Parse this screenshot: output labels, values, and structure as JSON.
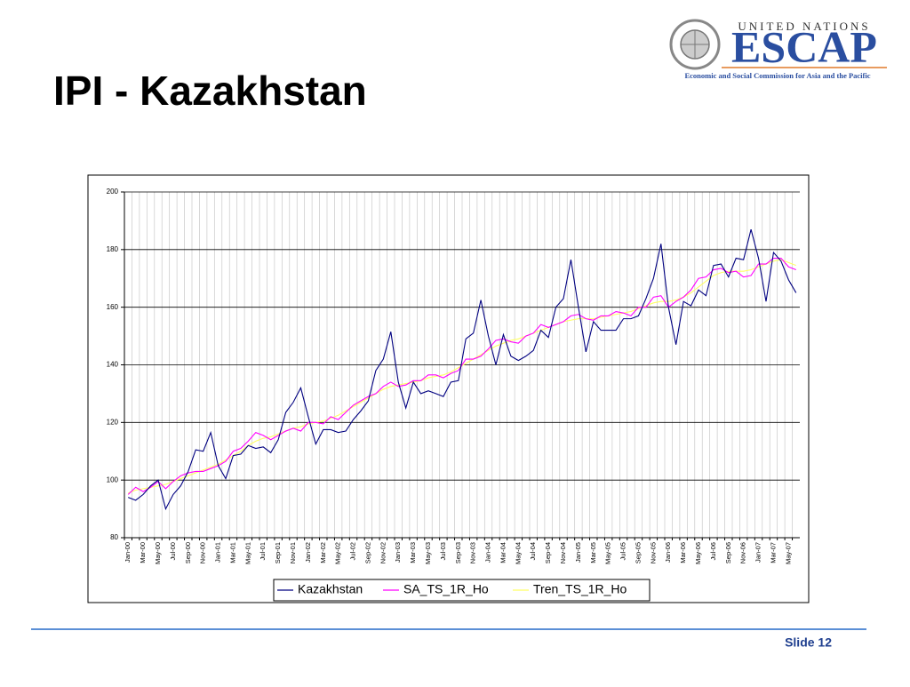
{
  "slide": {
    "title": "IPI - Kazakhstan",
    "logo_top": "UNITED NATIONS",
    "logo_name": "ESCAP",
    "logo_sub": "Economic and Social Commission for Asia and the Pacific",
    "footer": "Slide 12"
  },
  "chart_data": {
    "type": "line",
    "categories": [
      "Jan-00",
      null,
      "Mar-00",
      null,
      "May-00",
      null,
      "Jul-00",
      null,
      "Sep-00",
      null,
      "Nov-00",
      null,
      "Jan-01",
      null,
      "Mar-01",
      null,
      "May-01",
      null,
      "Jul-01",
      null,
      "Sep-01",
      null,
      "Nov-01",
      null,
      "Jan-02",
      null,
      "Mar-02",
      null,
      "May-02",
      null,
      "Jul-02",
      null,
      "Sep-02",
      null,
      "Nov-02",
      null,
      "Jan-03",
      null,
      "Mar-03",
      null,
      "May-03",
      null,
      "Jul-03",
      null,
      "Sep-03",
      null,
      "Nov-03",
      null,
      "Jan-04",
      null,
      "Mar-04",
      null,
      "May-04",
      null,
      "Jul-04",
      null,
      "Sep-04",
      null,
      "Nov-04",
      null,
      "Jan-05",
      null,
      "Mar-05",
      null,
      "May-05",
      null,
      "Jul-05",
      null,
      "Sep-05",
      null,
      "Nov-05",
      null,
      "Jan-06",
      null,
      "Mar-06",
      null,
      "May-06",
      null,
      "Jul-06",
      null,
      "Sep-06",
      null,
      "Nov-06",
      null,
      "Jan-07",
      null,
      "Mar-07",
      null,
      "May-07",
      null
    ],
    "series": [
      {
        "name": "Kazakhstan",
        "color": "#000080",
        "values": [
          94,
          93,
          95,
          98,
          100,
          90,
          95,
          98,
          103,
          110.5,
          110,
          116.5,
          105,
          100.5,
          108.5,
          109,
          112,
          111,
          111.5,
          109.5,
          114,
          123.5,
          127,
          132,
          122,
          112.5,
          117.5,
          117.5,
          116.5,
          117,
          121,
          124,
          127.5,
          138,
          142,
          151.5,
          134,
          125,
          134,
          130,
          131,
          130,
          129,
          134,
          134.5,
          149,
          151,
          162.5,
          150,
          140,
          150.5,
          143,
          141.5,
          143,
          145,
          152,
          149.5,
          160,
          163,
          176.5,
          160,
          144.5,
          155,
          152,
          152,
          152,
          156,
          156,
          157,
          163,
          170,
          182,
          160,
          147,
          162,
          160.5,
          166,
          164,
          174.5,
          175,
          170.5,
          177,
          176.5,
          187,
          177,
          162,
          179,
          176,
          169.5,
          165
        ]
      },
      {
        "name": "SA_TS_1R_Ho",
        "color": "#ff00ff",
        "values": [
          95,
          97.5,
          96,
          97.5,
          99.5,
          97,
          99.5,
          101.5,
          102.5,
          103,
          103,
          104,
          105,
          106.5,
          110,
          111,
          113.5,
          116.5,
          115.5,
          114,
          115.5,
          117,
          118,
          117,
          120,
          120,
          119.5,
          122,
          121,
          123.5,
          126,
          127.5,
          129,
          130,
          132.5,
          134,
          132.5,
          133,
          134.5,
          134.5,
          136.5,
          136.5,
          135.5,
          137,
          138,
          142,
          142,
          143,
          145.5,
          148.5,
          149,
          148,
          147.5,
          150,
          151,
          154,
          153,
          154,
          155,
          157,
          157.5,
          156,
          155.5,
          157,
          157,
          158.5,
          158,
          157,
          160,
          160,
          163.5,
          164,
          160,
          162,
          163.5,
          166,
          170,
          170.5,
          173,
          173.5,
          172,
          172.5,
          170.5,
          171,
          175,
          175,
          177,
          177,
          174,
          173
        ]
      },
      {
        "name": "Tren_TS_1R_Ho",
        "color": "#ffff66",
        "values": [
          95.5,
          96.5,
          97,
          97.5,
          98,
          98.5,
          99.5,
          100.5,
          101.5,
          102.5,
          103.5,
          104.5,
          105.5,
          107,
          108.5,
          110,
          112,
          113.5,
          114.5,
          115,
          116,
          117,
          118,
          118.5,
          119.5,
          120,
          120.5,
          121.5,
          122.5,
          124,
          125.5,
          127,
          128.5,
          130,
          131.5,
          132.5,
          133,
          133.5,
          134,
          134.5,
          135.5,
          136,
          136.5,
          137.5,
          139,
          140.5,
          142,
          143.5,
          145,
          146.5,
          147.5,
          148.5,
          149,
          150,
          151,
          152,
          153,
          154,
          155,
          155.5,
          156,
          156,
          156,
          156.5,
          157,
          157.5,
          158,
          158.5,
          159.5,
          160.5,
          161.5,
          162,
          162,
          162.5,
          163.5,
          165,
          167,
          169,
          171,
          172,
          172.5,
          172.5,
          172.5,
          173,
          174,
          175,
          176,
          176.5,
          175.5,
          174.5
        ]
      }
    ],
    "ylim": [
      80,
      200
    ],
    "yticks": [
      80,
      100,
      120,
      140,
      160,
      180,
      200
    ],
    "grid": true,
    "legend": "bottom"
  }
}
